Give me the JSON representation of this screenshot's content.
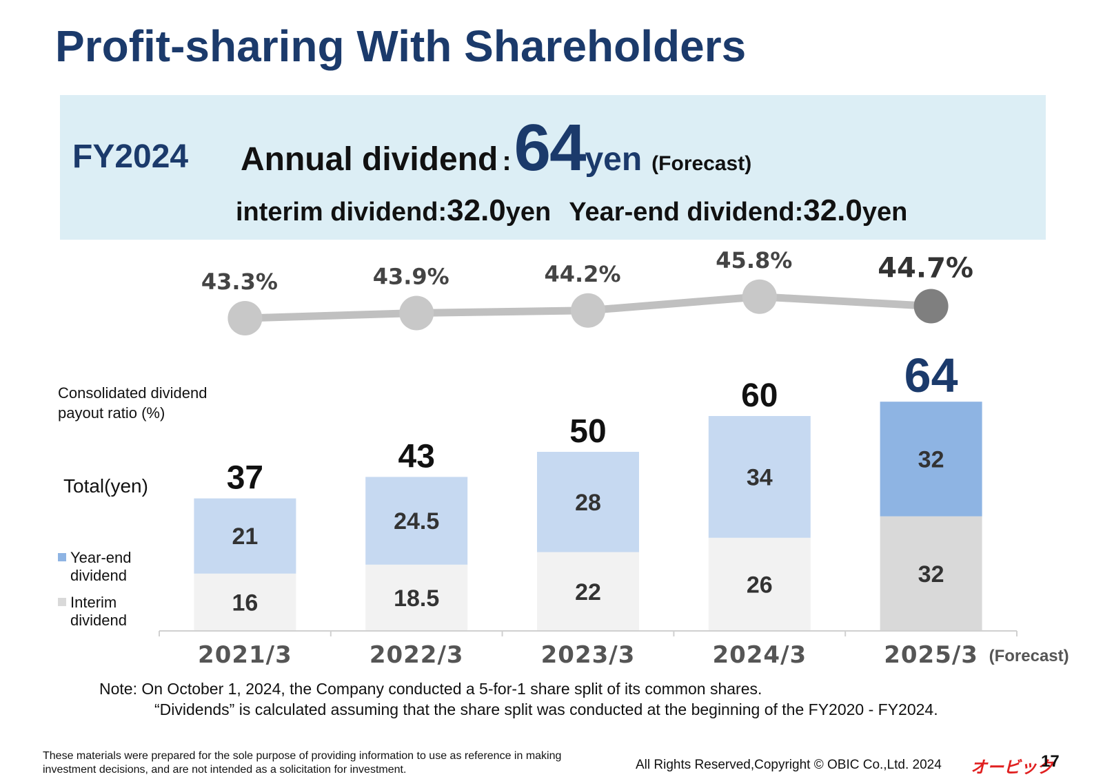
{
  "title": "Profit-sharing With Shareholders",
  "summary": {
    "fy": "FY2024",
    "annual_label": "Annual dividend",
    "colon": ":",
    "annual_amount": "64",
    "annual_unit": "yen",
    "forecast": "(Forecast)",
    "interim_label": "interim dividend",
    "interim_amount": "32.0",
    "interim_unit": "yen",
    "yearend_label": "Year-end dividend",
    "yearend_amount": "32.0",
    "yearend_unit": "yen"
  },
  "labels": {
    "payout_ratio": "Consolidated dividend payout ratio (%)",
    "total": "Total(yen)",
    "legend_yearend": "Year-end dividend",
    "legend_interim": "Interim dividend"
  },
  "colors": {
    "yearend": "#c6d9f1",
    "yearend_forecast": "#8eb4e3",
    "interim": "#f2f2f2",
    "interim_forecast": "#d9d9d9",
    "line": "#c0c0c0",
    "marker": "#c8c8c8",
    "marker_forecast": "#7f7f7f",
    "title": "#1b3a6b"
  },
  "chart_data": {
    "type": "bar",
    "stacked": true,
    "categories": [
      "2021/3",
      "2022/3",
      "2023/3",
      "2024/3",
      "2025/3"
    ],
    "forecast_index": 4,
    "forecast_label": "(Forecast)",
    "series": [
      {
        "name": "Interim dividend",
        "values": [
          16,
          18.5,
          22,
          26,
          32
        ],
        "labels": [
          "16",
          "18.5",
          "22",
          "26",
          "32"
        ]
      },
      {
        "name": "Year-end dividend",
        "values": [
          21,
          24.5,
          28,
          34,
          32
        ],
        "labels": [
          "21",
          "24.5",
          "28",
          "34",
          "32"
        ]
      }
    ],
    "totals": [
      37,
      43,
      50,
      60,
      64
    ],
    "ylim": [
      0,
      70
    ],
    "payout_ratio": {
      "name": "Consolidated dividend payout ratio (%)",
      "values": [
        43.3,
        43.9,
        44.2,
        45.8,
        44.7
      ],
      "labels": [
        "43.3%",
        "43.9%",
        "44.2%",
        "45.8%",
        "44.7%"
      ]
    }
  },
  "note": {
    "line1": "Note: On October 1, 2024, the Company conducted a 5-for-1 share split of its common shares.",
    "line2": "“Dividends” is calculated assuming that the share split was conducted at the beginning of the FY2020 - FY2024."
  },
  "footer": {
    "disclaimer": "These materials were prepared for the sole purpose of providing information to use as reference in making investment decisions, and are not intended as a solicitation for investment.",
    "copyright": "All Rights Reserved,Copyright © OBIC Co.,Ltd. 2024",
    "logo": "オービック",
    "page": "17"
  }
}
